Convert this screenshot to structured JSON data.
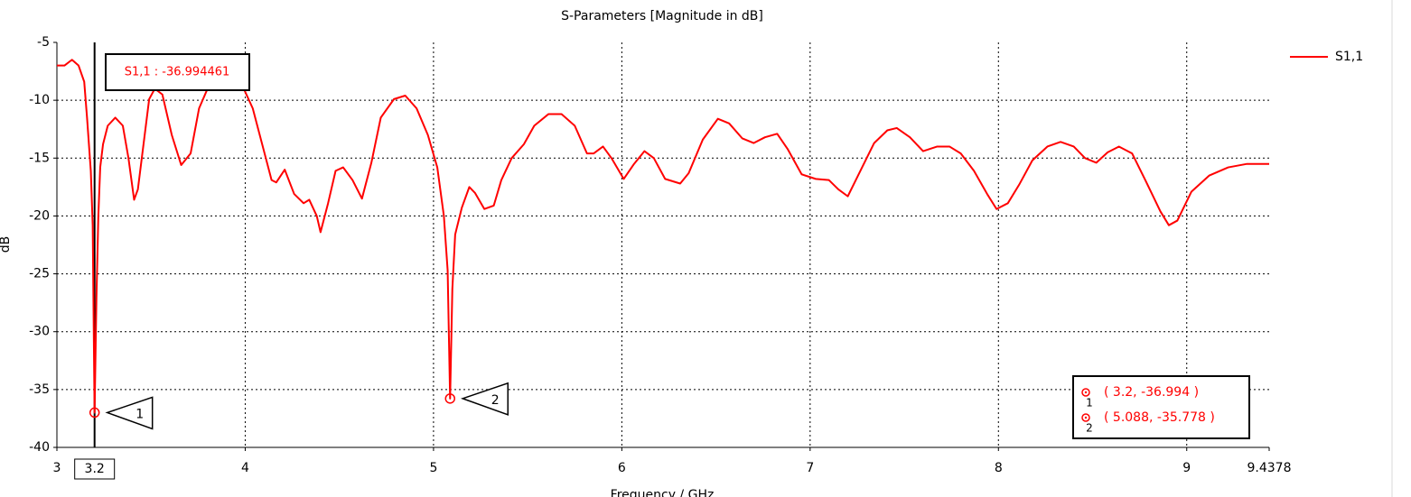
{
  "chart_data": {
    "type": "line",
    "title": "S-Parameters [Magnitude in dB]",
    "x_label": "Frequency / GHz",
    "y_label": "dB",
    "x": [
      3.0,
      3.04,
      3.08,
      3.115,
      3.145,
      3.16,
      3.18,
      3.19,
      3.2,
      3.21,
      3.22,
      3.23,
      3.245,
      3.27,
      3.31,
      3.35,
      3.38,
      3.41,
      3.43,
      3.46,
      3.49,
      3.52,
      3.56,
      3.61,
      3.66,
      3.71,
      3.755,
      3.8,
      3.92,
      3.995,
      4.04,
      4.09,
      4.14,
      4.165,
      4.21,
      4.26,
      4.31,
      4.34,
      4.38,
      4.4,
      4.44,
      4.48,
      4.52,
      4.57,
      4.62,
      4.67,
      4.72,
      4.79,
      4.85,
      4.91,
      4.97,
      5.02,
      5.055,
      5.075,
      5.088,
      5.1,
      5.115,
      5.15,
      5.19,
      5.22,
      5.27,
      5.32,
      5.36,
      5.415,
      5.48,
      5.535,
      5.61,
      5.68,
      5.75,
      5.815,
      5.85,
      5.9,
      5.945,
      6.01,
      6.065,
      6.12,
      6.17,
      6.23,
      6.31,
      6.355,
      6.43,
      6.51,
      6.57,
      6.64,
      6.7,
      6.76,
      6.825,
      6.88,
      6.955,
      7.03,
      7.1,
      7.15,
      7.2,
      7.27,
      7.34,
      7.41,
      7.46,
      7.53,
      7.6,
      7.675,
      7.74,
      7.8,
      7.87,
      7.94,
      7.99,
      8.05,
      8.11,
      8.18,
      8.26,
      8.33,
      8.4,
      8.46,
      8.52,
      8.58,
      8.64,
      8.71,
      8.78,
      8.86,
      8.905,
      8.95,
      9.025,
      9.12,
      9.22,
      9.32,
      9.4378
    ],
    "series": [
      {
        "name": "S1,1",
        "color": "#ff0000",
        "values": [
          -7.0,
          -7.0,
          -6.5,
          -7.0,
          -8.4,
          -11.5,
          -16.1,
          -20.8,
          -36.994,
          -27,
          -20,
          -15.8,
          -13.8,
          -12.2,
          -11.5,
          -12.2,
          -15,
          -18.6,
          -17.7,
          -13.8,
          -9.9,
          -9.0,
          -9.5,
          -13,
          -15.6,
          -14.6,
          -10.7,
          -9.0,
          -9.0,
          -9.1,
          -10.7,
          -13.8,
          -16.9,
          -17.1,
          -16.0,
          -18.1,
          -18.9,
          -18.6,
          -20.0,
          -21.4,
          -18.9,
          -16.1,
          -15.8,
          -16.9,
          -18.5,
          -15.4,
          -11.5,
          -9.9,
          -9.6,
          -10.7,
          -13,
          -15.8,
          -20,
          -24.7,
          -35.778,
          -26.3,
          -21.6,
          -19.3,
          -17.5,
          -18,
          -19.4,
          -19.1,
          -16.9,
          -15,
          -13.8,
          -12.2,
          -11.2,
          -11.2,
          -12.2,
          -14.6,
          -14.6,
          -14,
          -15,
          -16.8,
          -15.5,
          -14.4,
          -15,
          -16.8,
          -17.2,
          -16.3,
          -13.4,
          -11.6,
          -12,
          -13.3,
          -13.7,
          -13.2,
          -12.9,
          -14.2,
          -16.4,
          -16.8,
          -16.9,
          -17.7,
          -18.3,
          -16,
          -13.7,
          -12.6,
          -12.4,
          -13.2,
          -14.4,
          -14,
          -14,
          -14.6,
          -16.1,
          -18.1,
          -19.4,
          -18.9,
          -17.3,
          -15.2,
          -14,
          -13.6,
          -14,
          -15,
          -15.4,
          -14.5,
          -14,
          -14.6,
          -16.9,
          -19.6,
          -20.8,
          -20.4,
          -17.9,
          -16.5,
          -15.8,
          -15.5,
          -15.5
        ]
      }
    ],
    "xlim": [
      3,
      9.4378
    ],
    "xticks": [
      3,
      4,
      5,
      6,
      7,
      8,
      9,
      9.4378
    ],
    "ylim": [
      -40,
      -5
    ],
    "yticks": [
      -40,
      -35,
      -30,
      -25,
      -20,
      -15,
      -10,
      -5
    ],
    "grid": true,
    "legend": "top-right",
    "markers": [
      {
        "id": "1",
        "x": 3.2,
        "y": -36.994,
        "label": "( 3.2, -36.994 )"
      },
      {
        "id": "2",
        "x": 5.088,
        "y": -35.778,
        "label": "( 5.088, -35.778 )"
      }
    ],
    "cursor": {
      "x": 3.2,
      "readout": "S1,1 : -36.994461"
    }
  }
}
